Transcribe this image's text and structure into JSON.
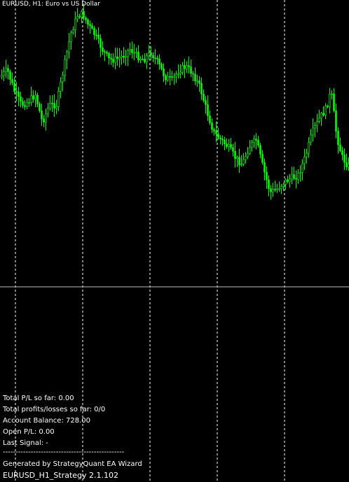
{
  "chart": {
    "title": "EURUSD, H1:  Euro vs US Dollar",
    "bull_color": "#00ff00",
    "bear_color": "#00ff00",
    "grid_color": "#ffffff",
    "horizontal_line_color": "#c0c0c0"
  },
  "info": {
    "total_pl": "Total P/L so far: 0.00",
    "total_profits_losses": "Total profits/losses so far: 0/0",
    "account_balance": "Account Balance: 728.00",
    "open_pl": "Open P/L: 0.00",
    "last_signal": "Last Signal:  -",
    "separator": "------------------------------------------------",
    "generated_by": "Generated by StrategyQuant EA Wizard",
    "strategy_name": "EURUSD_H1_Strategy 2.1.102"
  }
}
